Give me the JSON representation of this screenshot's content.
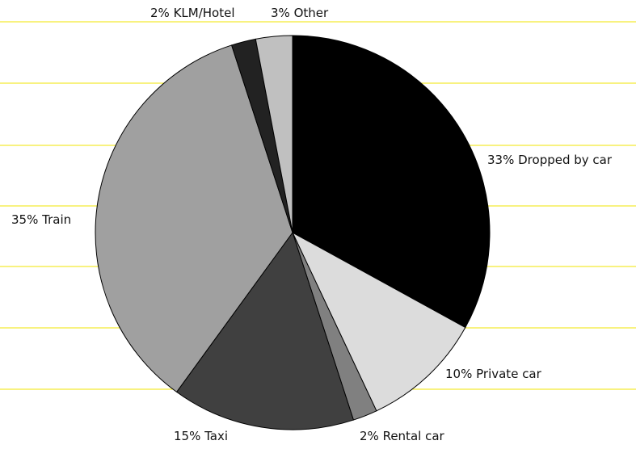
{
  "chart_data": {
    "type": "pie",
    "categories": [
      "Dropped by car",
      "Private car",
      "Rental car",
      "Taxi",
      "Train",
      "KLM/Hotel",
      "Other"
    ],
    "values": [
      33,
      10,
      2,
      15,
      35,
      2,
      3
    ],
    "value_labels": [
      "33%",
      "10%",
      "2%",
      "15%",
      "35%",
      "2%",
      "3%"
    ],
    "colors": [
      "#000000",
      "#dcdcdc",
      "#808080",
      "#404040",
      "#a0a0a0",
      "#222222",
      "#c0c0c0"
    ]
  }
}
